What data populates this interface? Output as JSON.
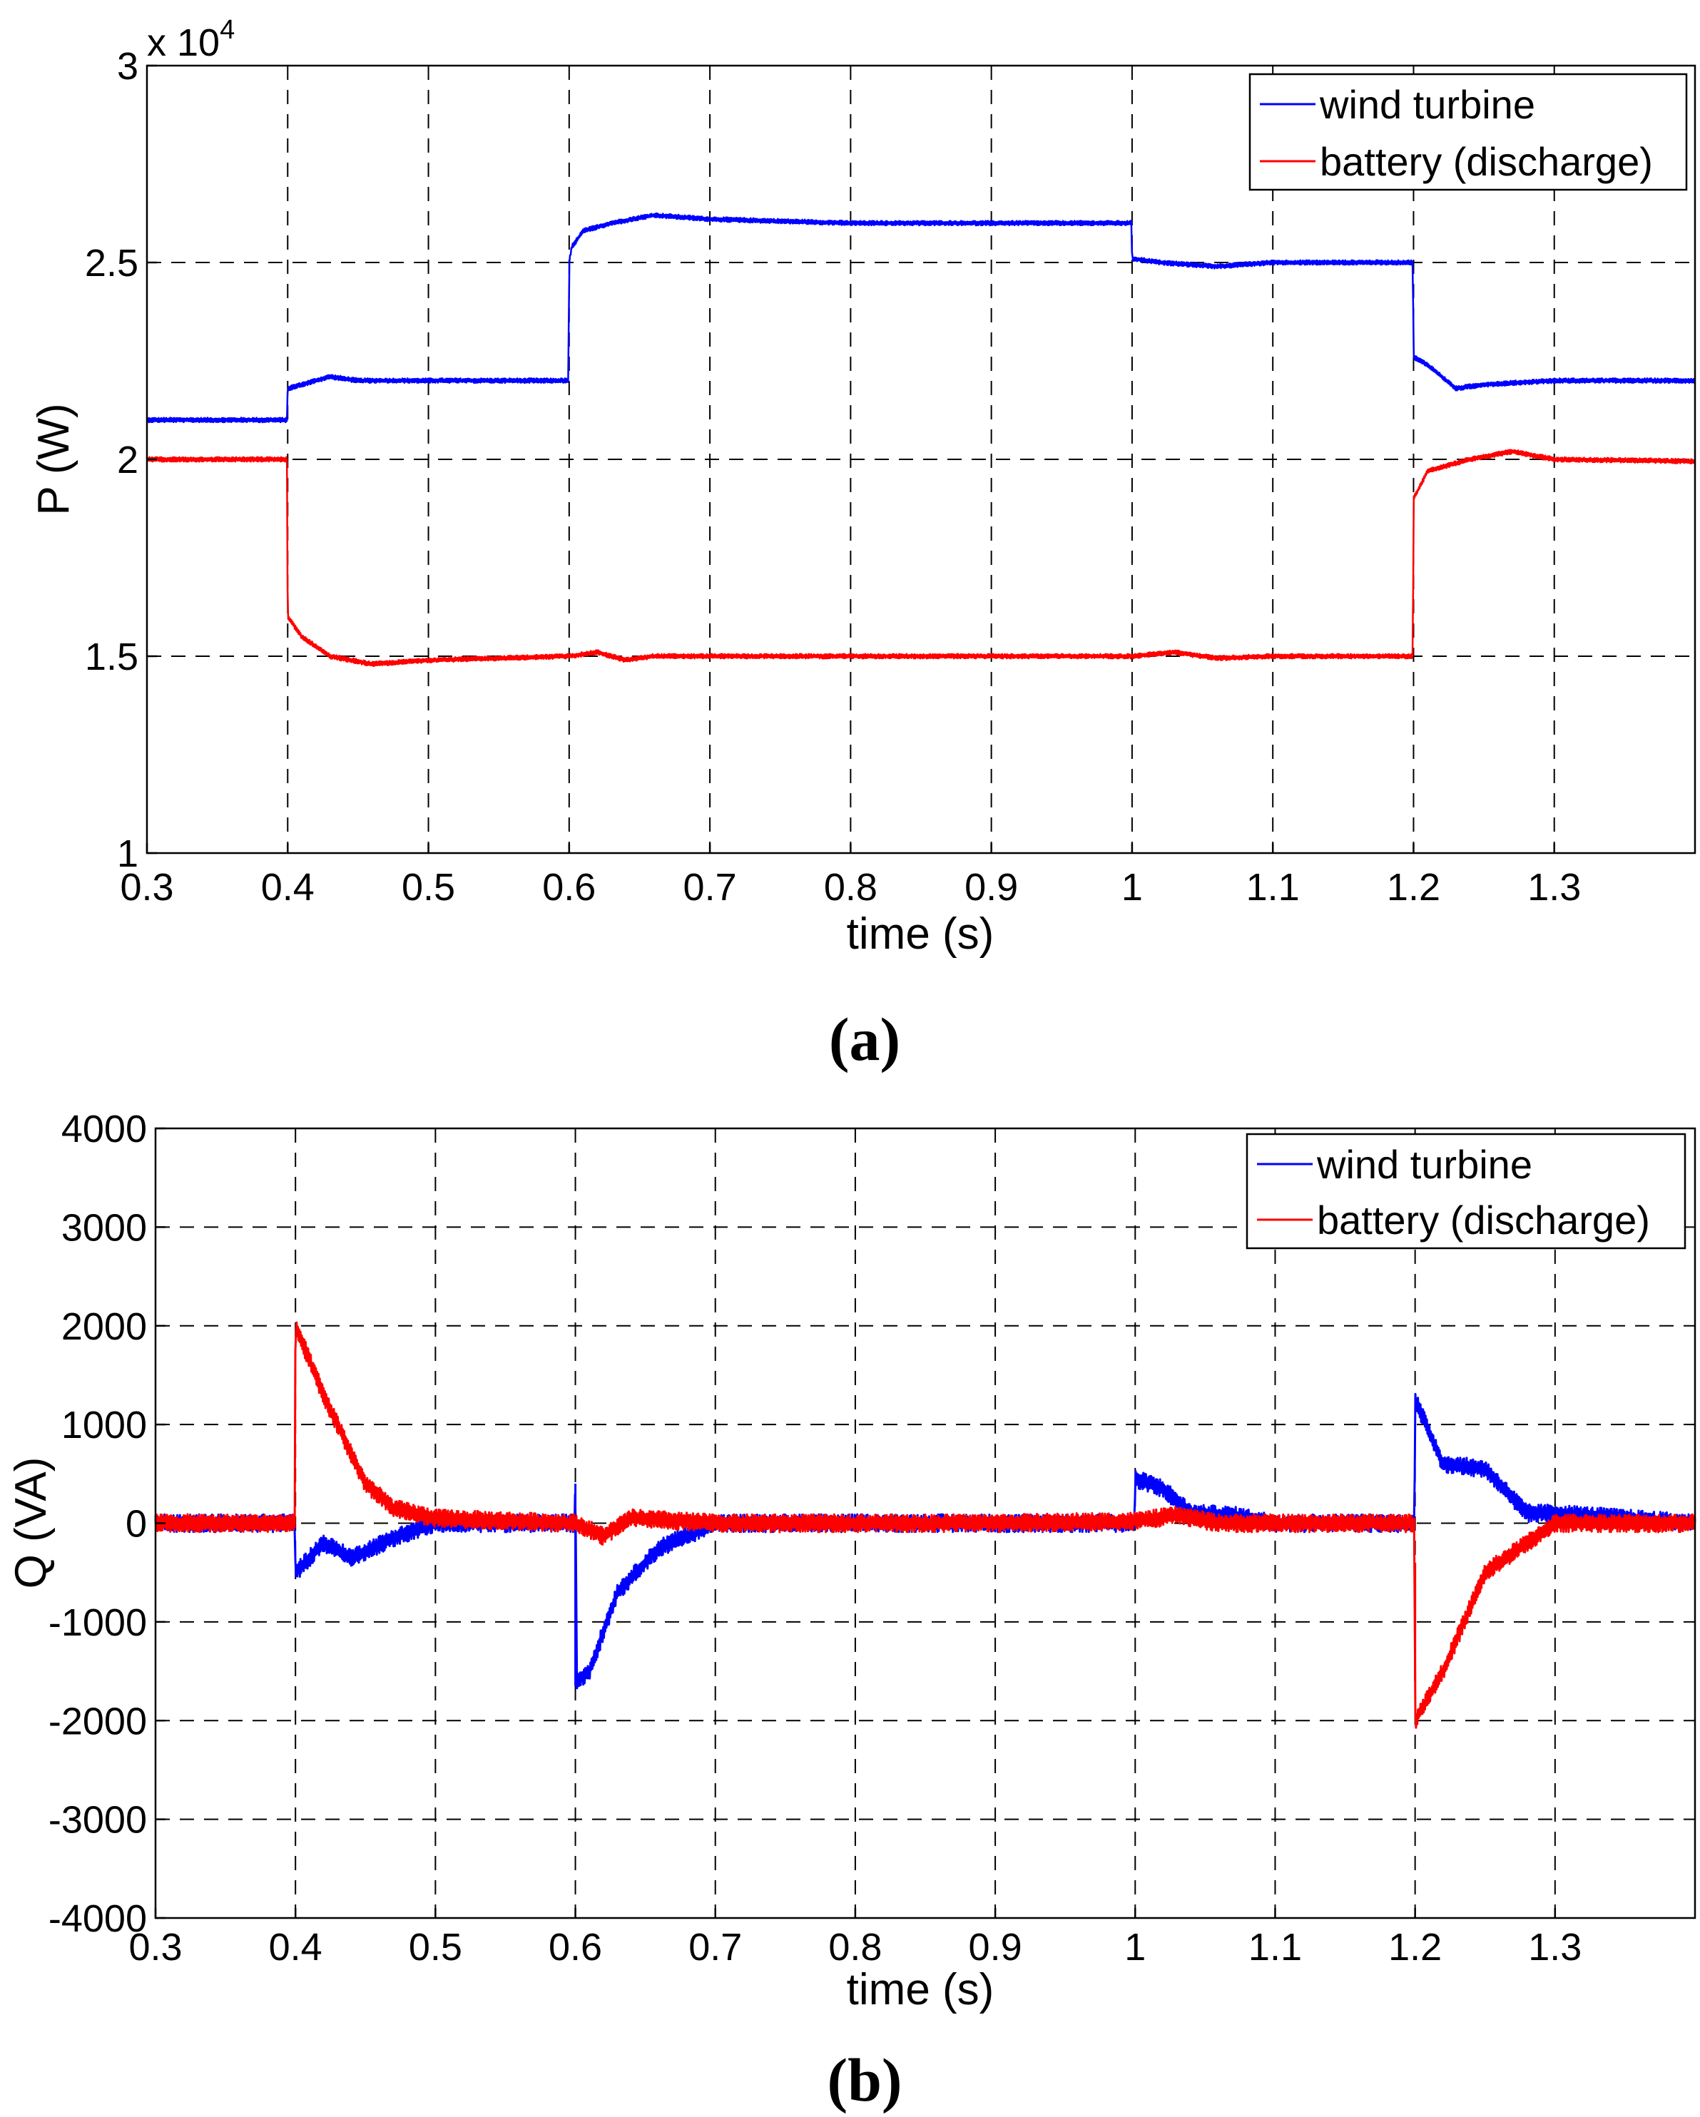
{
  "chart_data": [
    {
      "type": "line",
      "caption": "(a)",
      "xlabel": "time (s)",
      "ylabel": "P (W)",
      "exponent_label": "x 10",
      "exponent_power": "4",
      "xlim": [
        0.3,
        1.4
      ],
      "ylim": [
        10000,
        30000
      ],
      "xticks": [
        0.3,
        0.4,
        0.5,
        0.6,
        0.7,
        0.8,
        0.9,
        1.0,
        1.1,
        1.2,
        1.3
      ],
      "xtick_labels": [
        "0.3",
        "0.4",
        "0.5",
        "0.6",
        "0.7",
        "0.8",
        "0.9",
        "1",
        "1.1",
        "1.2",
        "1.3"
      ],
      "yticks": [
        10000,
        15000,
        20000,
        25000,
        30000
      ],
      "ytick_labels": [
        "1",
        "1.5",
        "2",
        "2.5",
        "3"
      ],
      "grid": true,
      "legend_position": "top-right",
      "series": [
        {
          "name": "wind turbine",
          "color": "#0000ff",
          "noise": 60,
          "x": [
            0.3,
            0.3995,
            0.4,
            0.41,
            0.43,
            0.45,
            0.5,
            0.5995,
            0.6,
            0.602,
            0.61,
            0.63,
            0.66,
            0.7,
            0.8,
            0.9,
            0.9995,
            1.0,
            1.02,
            1.06,
            1.1,
            1.1995,
            1.2,
            1.21,
            1.23,
            1.25,
            1.3,
            1.4
          ],
          "y": [
            21000,
            21000,
            21800,
            21900,
            22100,
            22000,
            22000,
            22000,
            25000,
            25400,
            25800,
            26000,
            26200,
            26100,
            26000,
            26000,
            26000,
            25100,
            25000,
            24900,
            25000,
            25000,
            22600,
            22400,
            21800,
            21900,
            22000,
            22000
          ]
        },
        {
          "name": "battery (discharge)",
          "color": "#ff0000",
          "noise": 60,
          "x": [
            0.3,
            0.3995,
            0.4,
            0.41,
            0.43,
            0.46,
            0.5,
            0.6,
            0.62,
            0.64,
            0.66,
            0.7,
            0.8,
            1.0,
            1.03,
            1.06,
            1.1,
            1.1995,
            1.2,
            1.21,
            1.24,
            1.27,
            1.3,
            1.4
          ],
          "y": [
            20000,
            20000,
            16000,
            15500,
            15000,
            14800,
            14900,
            15000,
            15100,
            14900,
            15000,
            15000,
            15000,
            15000,
            15100,
            14950,
            15000,
            15000,
            19000,
            19700,
            20000,
            20200,
            20000,
            19950
          ]
        }
      ]
    },
    {
      "type": "line",
      "caption": "(b)",
      "xlabel": "time (s)",
      "ylabel": "Q (VA)",
      "xlim": [
        0.3,
        1.4
      ],
      "ylim": [
        -4000,
        4000
      ],
      "xticks": [
        0.3,
        0.4,
        0.5,
        0.6,
        0.7,
        0.8,
        0.9,
        1.0,
        1.1,
        1.2,
        1.3
      ],
      "xtick_labels": [
        "0.3",
        "0.4",
        "0.5",
        "0.6",
        "0.7",
        "0.8",
        "0.9",
        "1",
        "1.1",
        "1.2",
        "1.3"
      ],
      "yticks": [
        -4000,
        -3000,
        -2000,
        -1000,
        0,
        1000,
        2000,
        3000,
        4000
      ],
      "ytick_labels": [
        "-4000",
        "-3000",
        "-2000",
        "-1000",
        "0",
        "1000",
        "2000",
        "3000",
        "4000"
      ],
      "grid": true,
      "legend_position": "top-right",
      "series": [
        {
          "name": "wind turbine",
          "color": "#0000ff",
          "noise": 90,
          "x": [
            0.3,
            0.3995,
            0.4,
            0.42,
            0.44,
            0.47,
            0.5,
            0.5995,
            0.6,
            0.601,
            0.61,
            0.63,
            0.66,
            0.7,
            0.8,
            0.9,
            0.9995,
            1.0,
            1.02,
            1.04,
            1.07,
            1.1,
            1.1995,
            1.2,
            1.22,
            1.25,
            1.28,
            1.3,
            1.4
          ],
          "y": [
            0,
            0,
            -500,
            -200,
            -350,
            -150,
            0,
            0,
            500,
            -1600,
            -1500,
            -700,
            -250,
            0,
            0,
            0,
            0,
            450,
            350,
            100,
            80,
            0,
            0,
            1250,
            600,
            550,
            100,
            100,
            0
          ],
          "extra": [
            [
              0.6,
              -1650
            ]
          ]
        },
        {
          "name": "battery (discharge)",
          "color": "#ff0000",
          "noise": 90,
          "x": [
            0.3,
            0.3995,
            0.4,
            0.42,
            0.45,
            0.47,
            0.5,
            0.6,
            0.62,
            0.64,
            0.7,
            0.9,
            1.0,
            1.03,
            1.06,
            1.1,
            1.1995,
            1.2,
            1.22,
            1.25,
            1.28,
            1.3,
            1.4
          ],
          "y": [
            0,
            0,
            2000,
            1300,
            400,
            150,
            50,
            0,
            -130,
            50,
            0,
            0,
            20,
            80,
            0,
            0,
            0,
            -2000,
            -1500,
            -500,
            -200,
            0,
            0
          ],
          "extra": [
            [
              1.2,
              -400
            ]
          ]
        }
      ]
    }
  ]
}
